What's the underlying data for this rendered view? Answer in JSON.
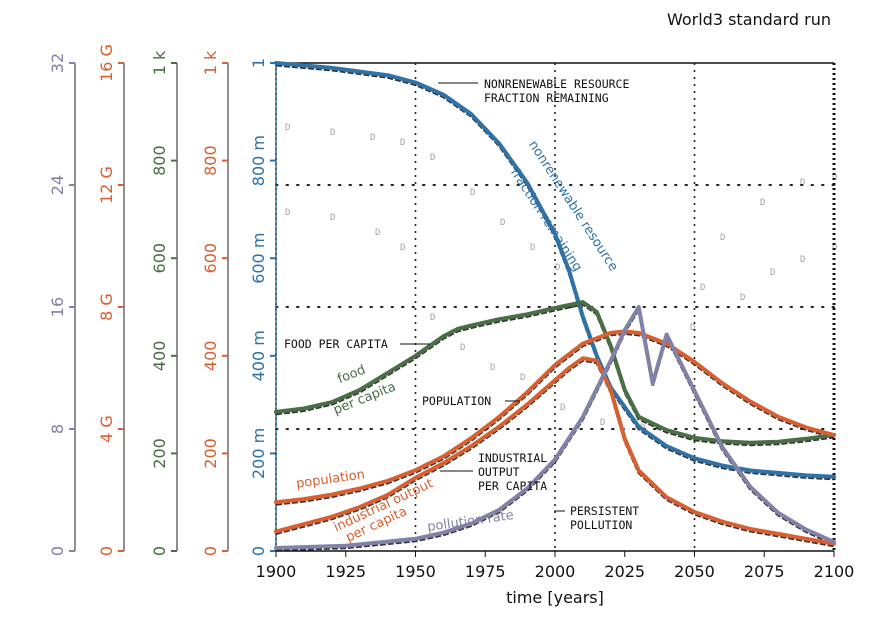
{
  "chart_data": {
    "type": "line",
    "title": "World3 standard run",
    "xlabel": "time [years]",
    "xlim": [
      1900,
      2100
    ],
    "x_ticks": [
      1900,
      1925,
      1950,
      1975,
      2000,
      2025,
      2050,
      2075,
      2100
    ],
    "axes": [
      {
        "id": "pollution",
        "color": "#8282a8",
        "ylim": [
          0,
          32
        ],
        "ticks": [
          0,
          8,
          16,
          24,
          32
        ],
        "tick_labels": [
          "0",
          "8",
          "16",
          "24",
          "32"
        ]
      },
      {
        "id": "population",
        "color": "#d95f30",
        "ylim": [
          0,
          16000000000
        ],
        "ticks": [
          0,
          4,
          8,
          12,
          16
        ],
        "tick_labels": [
          "0",
          "4 G",
          "8 G",
          "12 G",
          "16 G"
        ]
      },
      {
        "id": "food",
        "color": "#4a6e46",
        "ylim": [
          0,
          1000
        ],
        "ticks": [
          0,
          200,
          400,
          600,
          800,
          1000
        ],
        "tick_labels": [
          "0",
          "200",
          "400",
          "600",
          "800",
          "1 k"
        ]
      },
      {
        "id": "industrial",
        "color": "#d95f30",
        "ylim": [
          0,
          1000
        ],
        "ticks": [
          0,
          200,
          400,
          600,
          800,
          1000
        ],
        "tick_labels": [
          "0",
          "200",
          "400",
          "600",
          "800",
          "1 k"
        ]
      },
      {
        "id": "resource",
        "color": "#2e72a8",
        "ylim": [
          0,
          1
        ],
        "ticks": [
          0,
          0.2,
          0.4,
          0.6,
          0.8,
          1
        ],
        "tick_labels": [
          "0",
          "200 m",
          "400 m",
          "600 m",
          "800 m",
          "1"
        ]
      }
    ],
    "series": [
      {
        "name": "nonrenewable resource fraction remaining",
        "axis": "resource",
        "color": "#2e72a8",
        "x": [
          1900,
          1920,
          1940,
          1950,
          1960,
          1970,
          1980,
          1990,
          2000,
          2005,
          2010,
          2015,
          2020,
          2030,
          2040,
          2050,
          2060,
          2070,
          2080,
          2090,
          2100
        ],
        "y": [
          1.0,
          0.99,
          0.975,
          0.96,
          0.935,
          0.895,
          0.835,
          0.755,
          0.65,
          0.575,
          0.48,
          0.4,
          0.335,
          0.255,
          0.215,
          0.19,
          0.175,
          0.165,
          0.16,
          0.155,
          0.152
        ]
      },
      {
        "name": "food per capita",
        "axis": "food",
        "color": "#4a6e46",
        "x": [
          1900,
          1910,
          1920,
          1930,
          1940,
          1950,
          1960,
          1965,
          1970,
          1980,
          1990,
          2000,
          2010,
          2015,
          2020,
          2025,
          2030,
          2040,
          2050,
          2060,
          2070,
          2080,
          2090,
          2100
        ],
        "y": [
          285,
          292,
          305,
          330,
          365,
          400,
          440,
          455,
          462,
          475,
          485,
          498,
          510,
          490,
          420,
          330,
          275,
          248,
          232,
          225,
          222,
          224,
          230,
          238
        ]
      },
      {
        "name": "population",
        "axis": "population",
        "color": "#d95f30",
        "x": [
          1900,
          1910,
          1920,
          1930,
          1940,
          1950,
          1960,
          1970,
          1980,
          1990,
          2000,
          2010,
          2020,
          2025,
          2030,
          2040,
          2050,
          2060,
          2070,
          2080,
          2090,
          2100
        ],
        "y": [
          1600000000,
          1700000000,
          1850000000,
          2050000000,
          2300000000,
          2650000000,
          3100000000,
          3700000000,
          4400000000,
          5200000000,
          6100000000,
          6800000000,
          7150000000,
          7200000000,
          7150000000,
          6800000000,
          6200000000,
          5500000000,
          4900000000,
          4400000000,
          4050000000,
          3800000000
        ]
      },
      {
        "name": "industrial output per capita",
        "axis": "industrial",
        "color": "#d95f30",
        "x": [
          1900,
          1910,
          1920,
          1930,
          1940,
          1950,
          1960,
          1970,
          1980,
          1990,
          2000,
          2005,
          2010,
          2015,
          2020,
          2025,
          2030,
          2040,
          2050,
          2060,
          2070,
          2080,
          2090,
          2100
        ],
        "y": [
          40,
          55,
          70,
          90,
          115,
          150,
          180,
          215,
          255,
          300,
          350,
          375,
          395,
          390,
          330,
          230,
          165,
          110,
          80,
          60,
          45,
          35,
          25,
          15
        ]
      },
      {
        "name": "pollution rate",
        "axis": "pollution",
        "color": "#8282a8",
        "x": [
          1900,
          1925,
          1950,
          1960,
          1970,
          1980,
          1990,
          2000,
          2010,
          2020,
          2025,
          2030,
          2035,
          2040,
          2050,
          2060,
          2070,
          2080,
          2090,
          2100
        ],
        "y": [
          0.2,
          0.35,
          0.8,
          1.2,
          1.8,
          2.7,
          4.1,
          6.0,
          8.8,
          12.5,
          14.5,
          16.0,
          11.0,
          14.2,
          10.5,
          6.8,
          4.2,
          2.5,
          1.4,
          0.6
        ]
      }
    ],
    "annotations": {
      "resource_top": [
        "NONRENEWABLE RESOURCE",
        "FRACTION REMAINING"
      ],
      "resource_curve": [
        "nonrenewable resource",
        "fraction remaining"
      ],
      "food_left": "FOOD PER CAPITA",
      "food_curve": [
        "food",
        "per capita"
      ],
      "population_type": "POPULATION",
      "population_curve": "population",
      "industrial_type": [
        "INDUSTRIAL",
        "OUTPUT",
        "PER CAPITA"
      ],
      "industrial_curve": [
        "industrial output",
        "per capita"
      ],
      "pollution_type": [
        "PERSISTENT",
        "POLLUTION"
      ],
      "pollution_curve": "pollution rate"
    },
    "grid": "dotted"
  }
}
